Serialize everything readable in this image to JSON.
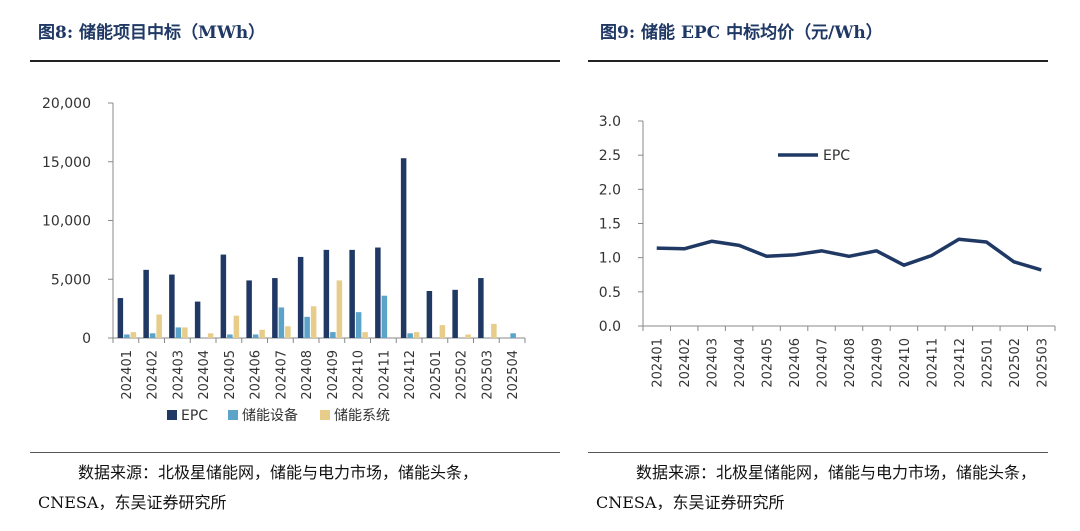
{
  "left": {
    "title": "图8:  储能项目中标（MWh）",
    "source": "数据来源：北极星储能网，储能与电力市场，储能头条，CNESA，东吴证券研究所"
  },
  "right": {
    "title": "图9:  储能 EPC 中标均价（元/Wh）",
    "source": "数据来源：北极星储能网，储能与电力市场，储能头条，CNESA，东吴证券研究所"
  },
  "colors": {
    "epc": "#203864",
    "equipment": "#5ba3c9",
    "system": "#e8cd8a",
    "title": "#1f3864"
  },
  "chart_data": [
    {
      "type": "bar",
      "categories": [
        "202401",
        "202402",
        "202403",
        "202404",
        "202405",
        "202406",
        "202407",
        "202408",
        "202409",
        "202410",
        "202411",
        "202412",
        "202501",
        "202502",
        "202503",
        "202504"
      ],
      "series": [
        {
          "name": "EPC",
          "values": [
            3400,
            5800,
            5400,
            3100,
            7100,
            4900,
            5100,
            6900,
            7500,
            7500,
            7700,
            15300,
            4000,
            4100,
            5100,
            0
          ]
        },
        {
          "name": "储能设备",
          "values": [
            300,
            400,
            900,
            0,
            300,
            300,
            2600,
            1800,
            500,
            2200,
            3600,
            400,
            0,
            0,
            0,
            400
          ]
        },
        {
          "name": "储能系统",
          "values": [
            500,
            2000,
            900,
            400,
            1900,
            700,
            1000,
            2700,
            4900,
            500,
            0,
            500,
            1100,
            300,
            1200,
            0
          ]
        }
      ],
      "yticks": [
        "0",
        "5,000",
        "10,000",
        "15,000",
        "20,000"
      ],
      "ylim": [
        0,
        20000
      ],
      "legend": "bottom"
    },
    {
      "type": "line",
      "categories": [
        "202401",
        "202402",
        "202403",
        "202404",
        "202405",
        "202406",
        "202407",
        "202408",
        "202409",
        "202410",
        "202411",
        "202412",
        "202501",
        "202502",
        "202503"
      ],
      "series": [
        {
          "name": "EPC",
          "values": [
            1.14,
            1.13,
            1.24,
            1.18,
            1.02,
            1.04,
            1.1,
            1.02,
            1.1,
            0.89,
            1.03,
            1.27,
            1.23,
            0.94,
            0.82
          ]
        }
      ],
      "yticks": [
        "0.0",
        "0.5",
        "1.0",
        "1.5",
        "2.0",
        "2.5",
        "3.0"
      ],
      "ylim": [
        0,
        3.0
      ],
      "legend": "top-left"
    }
  ]
}
